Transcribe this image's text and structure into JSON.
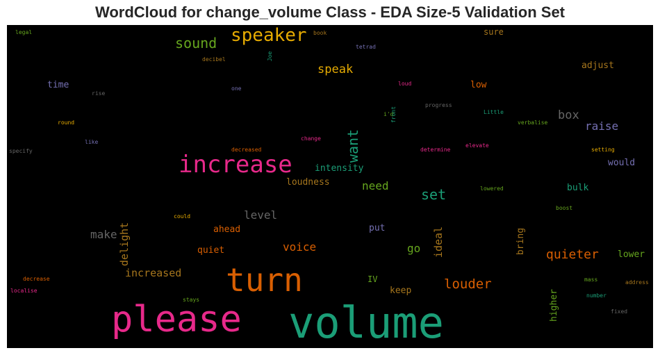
{
  "title": "WordCloud for change_volume Class - EDA Size-5 Validation Set",
  "words": [
    {
      "text": "volume",
      "color": "#1b9e77"
    },
    {
      "text": "please",
      "color": "#e7298a"
    },
    {
      "text": "turn",
      "color": "#d95f02"
    },
    {
      "text": "increase",
      "color": "#e7298a"
    },
    {
      "text": "speaker",
      "color": "#e6ab02"
    },
    {
      "text": "sound",
      "color": "#66a61e"
    },
    {
      "text": "speak",
      "color": "#e6ab02"
    },
    {
      "text": "want",
      "color": "#1b9e77"
    },
    {
      "text": "set",
      "color": "#1b9e77"
    },
    {
      "text": "louder",
      "color": "#d95f02"
    },
    {
      "text": "quieter",
      "color": "#d95f02"
    },
    {
      "text": "box",
      "color": "#666666"
    },
    {
      "text": "raise",
      "color": "#7570b3"
    },
    {
      "text": "level",
      "color": "#666666"
    },
    {
      "text": "make",
      "color": "#666666"
    },
    {
      "text": "voice",
      "color": "#d95f02"
    },
    {
      "text": "go",
      "color": "#66a61e"
    },
    {
      "text": "need",
      "color": "#66a61e"
    },
    {
      "text": "intensity",
      "color": "#1b9e77"
    },
    {
      "text": "loudness",
      "color": "#a6761d"
    },
    {
      "text": "increased",
      "color": "#a6761d"
    },
    {
      "text": "delight",
      "color": "#a6761d"
    },
    {
      "text": "ideal",
      "color": "#a6761d"
    },
    {
      "text": "ahead",
      "color": "#d95f02"
    },
    {
      "text": "quiet",
      "color": "#d95f02"
    },
    {
      "text": "time",
      "color": "#7570b3"
    },
    {
      "text": "adjust",
      "color": "#a6761d"
    },
    {
      "text": "low",
      "color": "#d95f02"
    },
    {
      "text": "would",
      "color": "#7570b3"
    },
    {
      "text": "bulk",
      "color": "#1b9e77"
    },
    {
      "text": "lower",
      "color": "#66a61e"
    },
    {
      "text": "bring",
      "color": "#a6761d"
    },
    {
      "text": "higher",
      "color": "#66a61e"
    },
    {
      "text": "keep",
      "color": "#a6761d"
    },
    {
      "text": "put",
      "color": "#7570b3"
    },
    {
      "text": "IV",
      "color": "#66a61e"
    },
    {
      "text": "sure",
      "color": "#a6761d"
    },
    {
      "text": "legal",
      "color": "#66a61e"
    },
    {
      "text": "book",
      "color": "#a6761d"
    },
    {
      "text": "tetrad",
      "color": "#7570b3"
    },
    {
      "text": "Joe",
      "color": "#1b9e77"
    },
    {
      "text": "decibel",
      "color": "#a6761d"
    },
    {
      "text": "one",
      "color": "#7570b3"
    },
    {
      "text": "rise",
      "color": "#666666"
    },
    {
      "text": "loud",
      "color": "#e7298a"
    },
    {
      "text": "i'd",
      "color": "#66a61e"
    },
    {
      "text": "front",
      "color": "#1b9e77"
    },
    {
      "text": "progress",
      "color": "#666666"
    },
    {
      "text": "Little",
      "color": "#1b9e77"
    },
    {
      "text": "verbalise",
      "color": "#66a61e"
    },
    {
      "text": "round",
      "color": "#e6ab02"
    },
    {
      "text": "like",
      "color": "#7570b3"
    },
    {
      "text": "specify",
      "color": "#666666"
    },
    {
      "text": "decreased",
      "color": "#d95f02"
    },
    {
      "text": "change",
      "color": "#e7298a"
    },
    {
      "text": "determine",
      "color": "#e7298a"
    },
    {
      "text": "elevate",
      "color": "#e7298a"
    },
    {
      "text": "setting",
      "color": "#e6ab02"
    },
    {
      "text": "lowered",
      "color": "#66a61e"
    },
    {
      "text": "boost",
      "color": "#66a61e"
    },
    {
      "text": "could",
      "color": "#e6ab02"
    },
    {
      "text": "mass",
      "color": "#66a61e"
    },
    {
      "text": "address",
      "color": "#a6761d"
    },
    {
      "text": "number",
      "color": "#1b9e77"
    },
    {
      "text": "fixed",
      "color": "#666666"
    },
    {
      "text": "decrease",
      "color": "#d95f02"
    },
    {
      "text": "localise",
      "color": "#e7298a"
    },
    {
      "text": "stays",
      "color": "#66a61e"
    }
  ]
}
